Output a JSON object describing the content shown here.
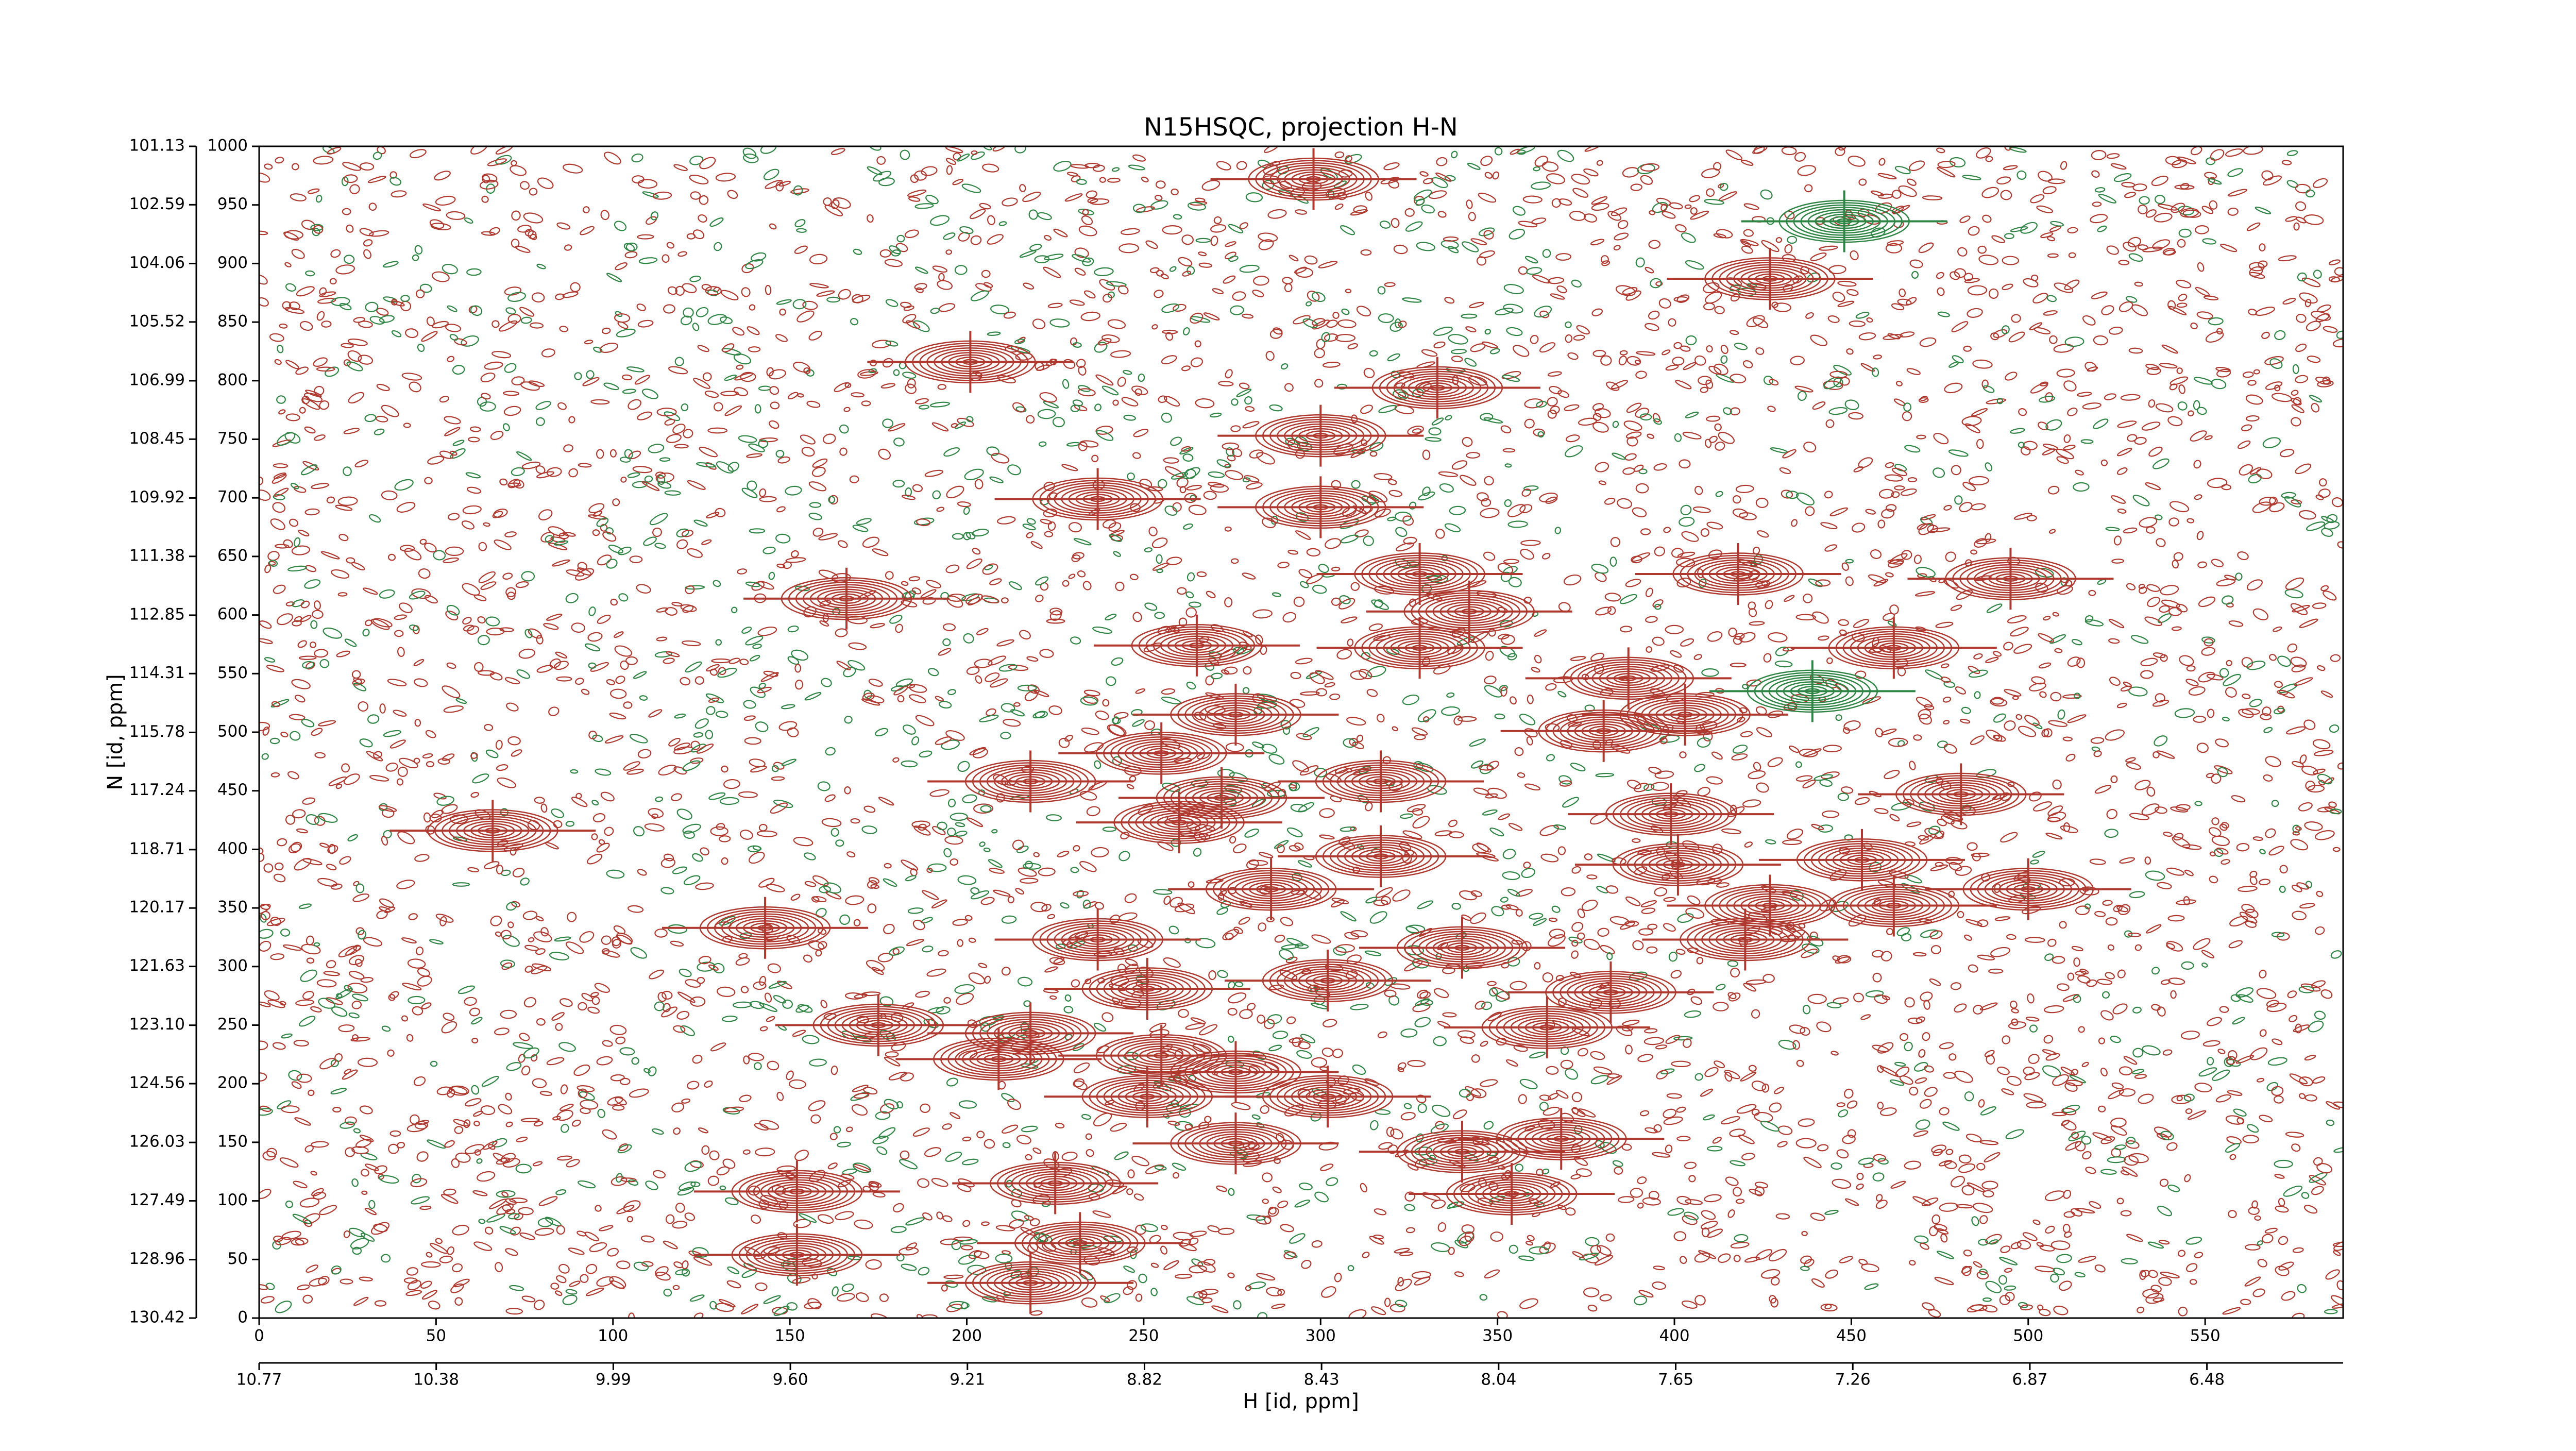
{
  "chart_data": {
    "type": "contour",
    "title": "N15HSQC, projection H-N",
    "xlabel": "H [id, ppm]",
    "ylabel": "N [id, ppm]",
    "xlim": [
      0,
      589
    ],
    "xticks": [
      0,
      50,
      100,
      150,
      200,
      250,
      300,
      350,
      400,
      450,
      500,
      550
    ],
    "x2lim": [
      10.77,
      6.18
    ],
    "x2ticks": [
      10.77,
      10.38,
      9.99,
      {
        "value": 9.6,
        "label": "9.60"
      },
      9.21,
      8.82,
      8.43,
      8.04,
      7.65,
      7.26,
      6.87,
      6.48
    ],
    "ylim": [
      0,
      1000
    ],
    "yticks": [
      0,
      50,
      100,
      150,
      200,
      250,
      300,
      350,
      400,
      450,
      500,
      550,
      600,
      650,
      700,
      750,
      800,
      850,
      900,
      950,
      1000
    ],
    "y2lim": [
      130.42,
      101.13
    ],
    "y2ticks": [
      130.42,
      128.96,
      127.49,
      126.03,
      124.56,
      {
        "value": 123.1,
        "label": "123.10"
      },
      121.63,
      120.17,
      118.71,
      117.24,
      115.78,
      114.31,
      112.85,
      111.38,
      109.92,
      108.45,
      106.99,
      105.52,
      104.06,
      102.59,
      101.13
    ],
    "colors": {
      "positive": "#b0392f",
      "negative": "#2e8544"
    },
    "positive_peaks": {
      "x": [
        298,
        427,
        201,
        333,
        300,
        237,
        300,
        166,
        418,
        495,
        328,
        342,
        265,
        462,
        328,
        387,
        276,
        403,
        380,
        218,
        255,
        272,
        317,
        481,
        66,
        260,
        399,
        317,
        453,
        401,
        286,
        500,
        143,
        427,
        462,
        420,
        237,
        340,
        251,
        302,
        382,
        175,
        218,
        364,
        209,
        255,
        276,
        302,
        251,
        276,
        340,
        368,
        152,
        225,
        354,
        152,
        232,
        218
      ],
      "y": [
        972,
        887,
        816,
        794,
        753,
        699,
        692,
        614,
        635,
        631,
        635,
        603,
        574,
        572,
        572,
        546,
        515,
        515,
        501,
        458,
        482,
        444,
        458,
        447,
        416,
        423,
        430,
        394,
        391,
        387,
        366,
        366,
        333,
        352,
        352,
        323,
        323,
        316,
        281,
        288,
        278,
        250,
        243,
        248,
        221,
        224,
        210,
        189,
        189,
        149,
        142,
        153,
        108,
        115,
        106,
        54,
        64,
        30
      ]
    },
    "negative_peaks": {
      "x": [
        439,
        448
      ],
      "y": [
        535,
        936
      ]
    }
  }
}
